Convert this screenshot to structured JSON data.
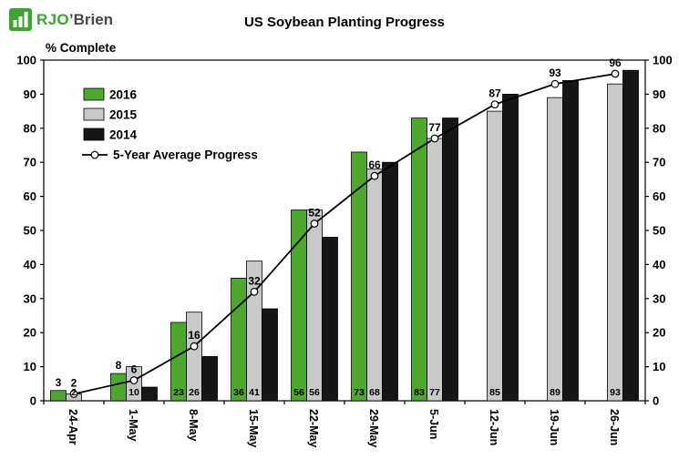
{
  "logo": {
    "icon": "bar-chart-icon",
    "text_primary": "RJO",
    "text_secondary": "’Brien",
    "brand_green": "#3fa233",
    "text_dark": "#45474a"
  },
  "title": "US Soybean Planting Progress",
  "chart_data": {
    "type": "combo-bar-line",
    "title": "US Soybean Planting Progress",
    "ylabel": "% Complete",
    "ylim": [
      0,
      100
    ],
    "ytick_step": 10,
    "grid": false,
    "mirror_y_axis": true,
    "legend_position": "top-left-inside",
    "categories": [
      "24-Apr",
      "1-May",
      "8-May",
      "15-May",
      "22-May",
      "29-May",
      "5-Jun",
      "12-Jun",
      "19-Jun",
      "26-Jun"
    ],
    "bar_series": [
      {
        "name": "2016",
        "color": "#4ea72e",
        "values": [
          3,
          8,
          23,
          36,
          56,
          73,
          83,
          null,
          null,
          null
        ],
        "top_labels": [
          3,
          8,
          null,
          null,
          null,
          null,
          null,
          null,
          null,
          null
        ],
        "base_labels": [
          null,
          null,
          23,
          36,
          56,
          73,
          83,
          null,
          null,
          null
        ]
      },
      {
        "name": "2015",
        "color": "#c9c9c9",
        "values": [
          2,
          10,
          26,
          41,
          56,
          68,
          77,
          85,
          89,
          93
        ],
        "base_labels": [
          2,
          10,
          26,
          41,
          56,
          68,
          77,
          85,
          89,
          93
        ]
      },
      {
        "name": "2014",
        "color": "#161616",
        "values": [
          0,
          4,
          13,
          27,
          48,
          70,
          83,
          90,
          94,
          97
        ]
      }
    ],
    "line_series": {
      "name": "5-Year Average Progress",
      "color": "#000000",
      "marker": "open-circle-white",
      "values": [
        2,
        6,
        16,
        32,
        52,
        66,
        77,
        87,
        93,
        96
      ],
      "labels": [
        2,
        6,
        16,
        32,
        52,
        66,
        77,
        87,
        93,
        96
      ]
    }
  }
}
